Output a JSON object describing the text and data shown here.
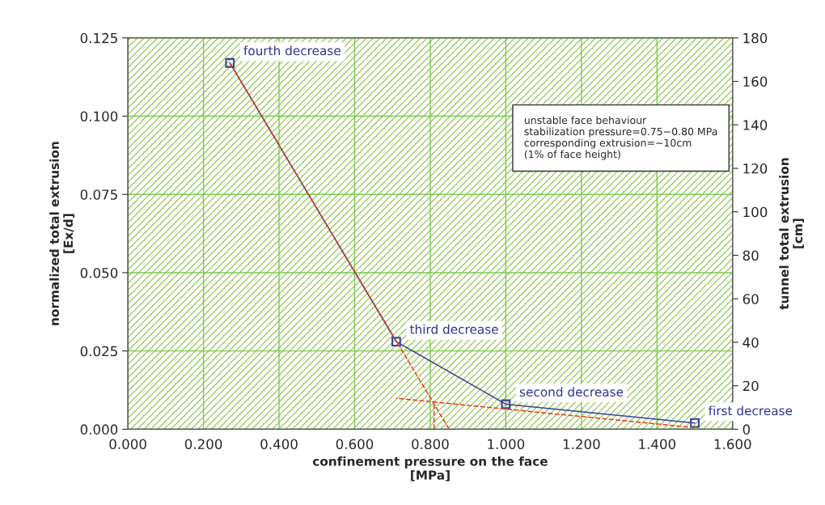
{
  "chart_data": {
    "type": "line",
    "xlabel": "confinement pressure on the face\n[MPa]",
    "ylabel": "normalized total extrusion\n[Ex/d]",
    "y2label": "tunnel total extrusion\n[cm]",
    "xlim": [
      0,
      1.6
    ],
    "xticks": [
      {
        "value": 0,
        "label": "0.000"
      },
      {
        "value": 0.2,
        "label": "0.200"
      },
      {
        "value": 0.4,
        "label": "0.400"
      },
      {
        "value": 0.6,
        "label": "0.600"
      },
      {
        "value": 0.8,
        "label": "0.800"
      },
      {
        "value": 1.0,
        "label": "1.000"
      },
      {
        "value": 1.2,
        "label": "1.200"
      },
      {
        "value": 1.4,
        "label": "1.400"
      },
      {
        "value": 1.6,
        "label": "1.600"
      }
    ],
    "ylim": [
      0,
      0.125
    ],
    "yticks": [
      {
        "value": 0,
        "label": "0.000"
      },
      {
        "value": 0.025,
        "label": "0.025"
      },
      {
        "value": 0.05,
        "label": "0.050"
      },
      {
        "value": 0.075,
        "label": "0.075"
      },
      {
        "value": 0.1,
        "label": "0.100"
      },
      {
        "value": 0.125,
        "label": "0.125"
      }
    ],
    "y2lim": [
      0,
      180
    ],
    "y2ticks": [
      0,
      20,
      40,
      60,
      80,
      100,
      120,
      140,
      160,
      180
    ],
    "grid": true,
    "series": [
      {
        "x": [
          0.27,
          0.71,
          1.0,
          1.5
        ],
        "values": [
          0.117,
          0.028,
          0.008,
          0.002
        ],
        "color": "#3a3f9a",
        "marker": "square",
        "line_style": "solid"
      },
      {
        "x": [
          0.27,
          0.85
        ],
        "values": [
          0.117,
          0.0
        ],
        "color": "#e8401c",
        "marker": "none",
        "line_style": "dashed"
      },
      {
        "x": [
          1.5,
          0.71
        ],
        "values": [
          0.0005,
          0.0099
        ],
        "color": "#e8401c",
        "marker": "none",
        "line_style": "dashed"
      },
      {
        "x": [
          0.81,
          0.81
        ],
        "values": [
          0.0,
          0.009
        ],
        "color": "#e8401c",
        "marker": "none",
        "line_style": "dashed"
      }
    ],
    "annotations": [
      {
        "text": "fourth decrease",
        "x": 0.27,
        "y": 0.117
      },
      {
        "text": "third decrease",
        "x": 0.71,
        "y": 0.028
      },
      {
        "text": "second decrease",
        "x": 1.0,
        "y": 0.008
      },
      {
        "text": "first decrease",
        "x": 1.5,
        "y": 0.002
      },
      "unstable face behaviour\nstabilization pressure=0.75−0.80 MPa\ncorresponding extrusion=~10cm\n(1% of face height)"
    ]
  }
}
